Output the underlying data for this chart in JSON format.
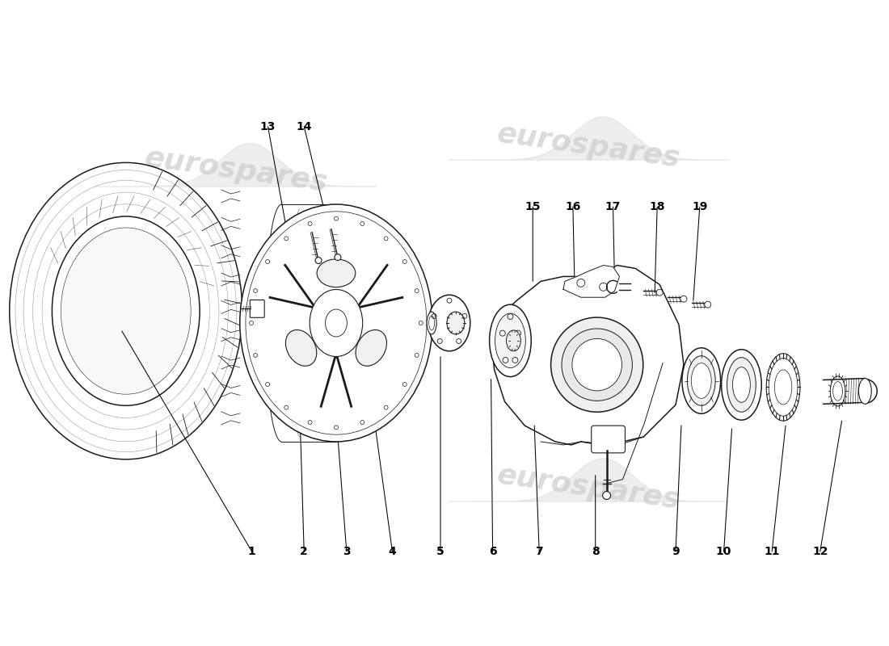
{
  "background_color": "#ffffff",
  "line_color": "#1a1a1a",
  "watermark_color": "#d8d8d8",
  "lw_main": 1.1,
  "lw_thin": 0.7,
  "label_fontsize": 10,
  "top_labels": [
    [
      "1",
      310,
      115,
      148,
      390
    ],
    [
      "2",
      375,
      115,
      370,
      280
    ],
    [
      "3",
      428,
      115,
      415,
      285
    ],
    [
      "4",
      485,
      115,
      460,
      298
    ],
    [
      "5",
      545,
      115,
      545,
      358
    ],
    [
      "6",
      610,
      115,
      608,
      330
    ],
    [
      "7",
      668,
      115,
      662,
      272
    ],
    [
      "8",
      738,
      115,
      738,
      210
    ],
    [
      "9",
      838,
      115,
      845,
      272
    ],
    [
      "10",
      898,
      115,
      908,
      268
    ],
    [
      "11",
      958,
      115,
      975,
      272
    ],
    [
      "12",
      1018,
      115,
      1045,
      278
    ]
  ],
  "bottom_labels": [
    [
      "13",
      330,
      645,
      358,
      490
    ],
    [
      "14",
      375,
      645,
      410,
      500
    ],
    [
      "15",
      660,
      545,
      660,
      452
    ],
    [
      "16",
      710,
      545,
      712,
      452
    ],
    [
      "17",
      760,
      545,
      762,
      448
    ],
    [
      "18",
      815,
      545,
      812,
      438
    ],
    [
      "19",
      868,
      545,
      860,
      428
    ]
  ]
}
